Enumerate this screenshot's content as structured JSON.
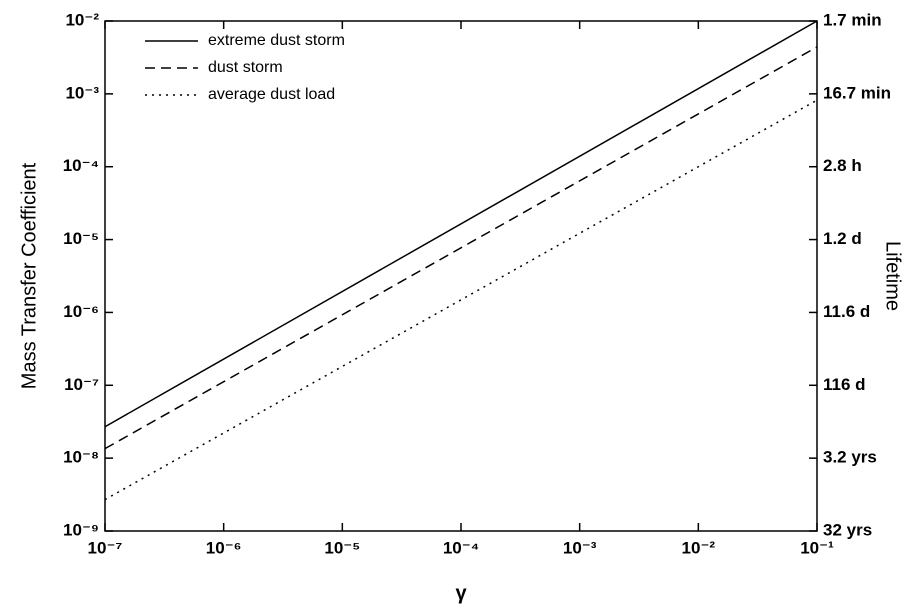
{
  "chart_data": {
    "type": "line",
    "x_label": "γ",
    "y_label": "Mass Transfer Coefficient",
    "y2_label": "Lifetime",
    "x": [
      1e-07,
      0.1
    ],
    "series": [
      {
        "name": "extreme dust storm",
        "color": "#000000",
        "dash": "solid",
        "values": [
          2.7e-08,
          0.01
        ]
      },
      {
        "name": "dust storm",
        "color": "#000000",
        "dash": "dashed",
        "values": [
          1.35e-08,
          0.0044
        ]
      },
      {
        "name": "average dust load",
        "color": "#000000",
        "dash": "dotted",
        "values": [
          2.7e-09,
          0.00082
        ]
      }
    ],
    "log_x": true,
    "log_y": true,
    "xlim": [
      1e-07,
      0.1
    ],
    "xticks": [
      {
        "value": 1e-07,
        "label": "10⁻⁷"
      },
      {
        "value": 1e-06,
        "label": "10⁻⁶"
      },
      {
        "value": 1e-05,
        "label": "10⁻⁵"
      },
      {
        "value": 0.0001,
        "label": "10⁻⁴"
      },
      {
        "value": 0.001,
        "label": "10⁻³"
      },
      {
        "value": 0.01,
        "label": "10⁻²"
      },
      {
        "value": 0.1,
        "label": "10⁻¹"
      }
    ],
    "ylim": [
      1e-09,
      0.01
    ],
    "yticks": [
      {
        "value": 1e-09,
        "label": "10⁻⁹"
      },
      {
        "value": 1e-08,
        "label": "10⁻⁸"
      },
      {
        "value": 1e-07,
        "label": "10⁻⁷"
      },
      {
        "value": 1e-06,
        "label": "10⁻⁶"
      },
      {
        "value": 1e-05,
        "label": "10⁻⁵"
      },
      {
        "value": 0.0001,
        "label": "10⁻⁴"
      },
      {
        "value": 0.001,
        "label": "10⁻³"
      },
      {
        "value": 0.01,
        "label": "10⁻²"
      }
    ],
    "y2lim": [
      1000000000.0,
      100
    ],
    "y2ticks": [
      {
        "value": 1000000000.0,
        "label": "32 yrs"
      },
      {
        "value": 100000000.0,
        "label": "3.2 yrs"
      },
      {
        "value": 10000000.0,
        "label": "116 d"
      },
      {
        "value": 1000000.0,
        "label": "11.6 d"
      },
      {
        "value": 100000.0,
        "label": "1.2 d"
      },
      {
        "value": 10000.0,
        "label": "2.8 h"
      },
      {
        "value": 1000,
        "label": "16.7 min"
      },
      {
        "value": 100,
        "label": "1.7 min"
      }
    ],
    "legend": "upper left",
    "grid": false
  }
}
